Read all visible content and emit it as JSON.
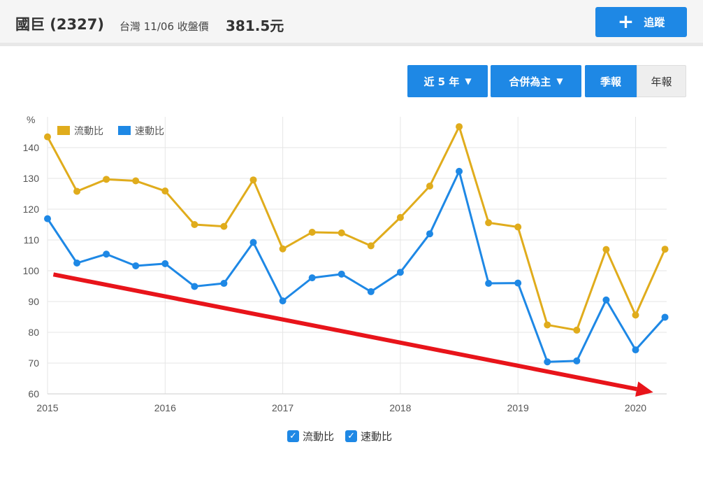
{
  "header": {
    "stock_name": "國巨 (2327)",
    "market_date_label": "台灣 11/06 收盤價",
    "price": "381.5元",
    "track_label": "追蹤"
  },
  "controls": {
    "period_label": "近 5 年",
    "basis_label": "合併為主",
    "quarterly_label": "季報",
    "annual_label": "年報"
  },
  "colors": {
    "current_ratio": "#e0ac1c",
    "quick_ratio": "#1e88e5",
    "trend_arrow": "#e8141a"
  },
  "icons": {
    "plus": "plus-icon",
    "chevron": "chevron-down-icon",
    "checkbox": "checkbox-checked-icon"
  },
  "chart_data": {
    "type": "line",
    "ylabel": "%",
    "ylim": [
      60,
      150
    ],
    "yticks": [
      60,
      70,
      80,
      90,
      100,
      110,
      120,
      130,
      140
    ],
    "xlim": [
      2015,
      2020.3
    ],
    "xticks": [
      "2015",
      "2016",
      "2017",
      "2018",
      "2019",
      "2020"
    ],
    "grid": true,
    "legend_position": "top-left",
    "x": [
      2015.0,
      2015.25,
      2015.5,
      2015.75,
      2016.0,
      2016.25,
      2016.5,
      2016.75,
      2017.0,
      2017.25,
      2017.5,
      2017.75,
      2018.0,
      2018.25,
      2018.5,
      2018.75,
      2019.0,
      2019.25,
      2019.5,
      2019.75,
      2020.0,
      2020.25
    ],
    "series": [
      {
        "name": "流動比",
        "values": [
          143.5,
          125.8,
          129.7,
          129.2,
          125.9,
          115.0,
          114.4,
          129.5,
          107.1,
          112.5,
          112.3,
          108.1,
          117.3,
          127.5,
          146.8,
          115.6,
          114.2,
          82.4,
          80.7,
          106.9,
          85.6,
          107.0
        ]
      },
      {
        "name": "速動比",
        "values": [
          116.9,
          102.5,
          105.4,
          101.6,
          102.3,
          94.9,
          95.9,
          109.2,
          90.2,
          97.7,
          98.9,
          93.2,
          99.5,
          112.0,
          132.3,
          95.9,
          96.0,
          70.4,
          70.7,
          90.5,
          74.3,
          84.9
        ]
      }
    ],
    "annotations": [
      {
        "type": "arrow",
        "from": [
          2015.05,
          98.8
        ],
        "to": [
          2020.15,
          60.5
        ]
      }
    ]
  }
}
